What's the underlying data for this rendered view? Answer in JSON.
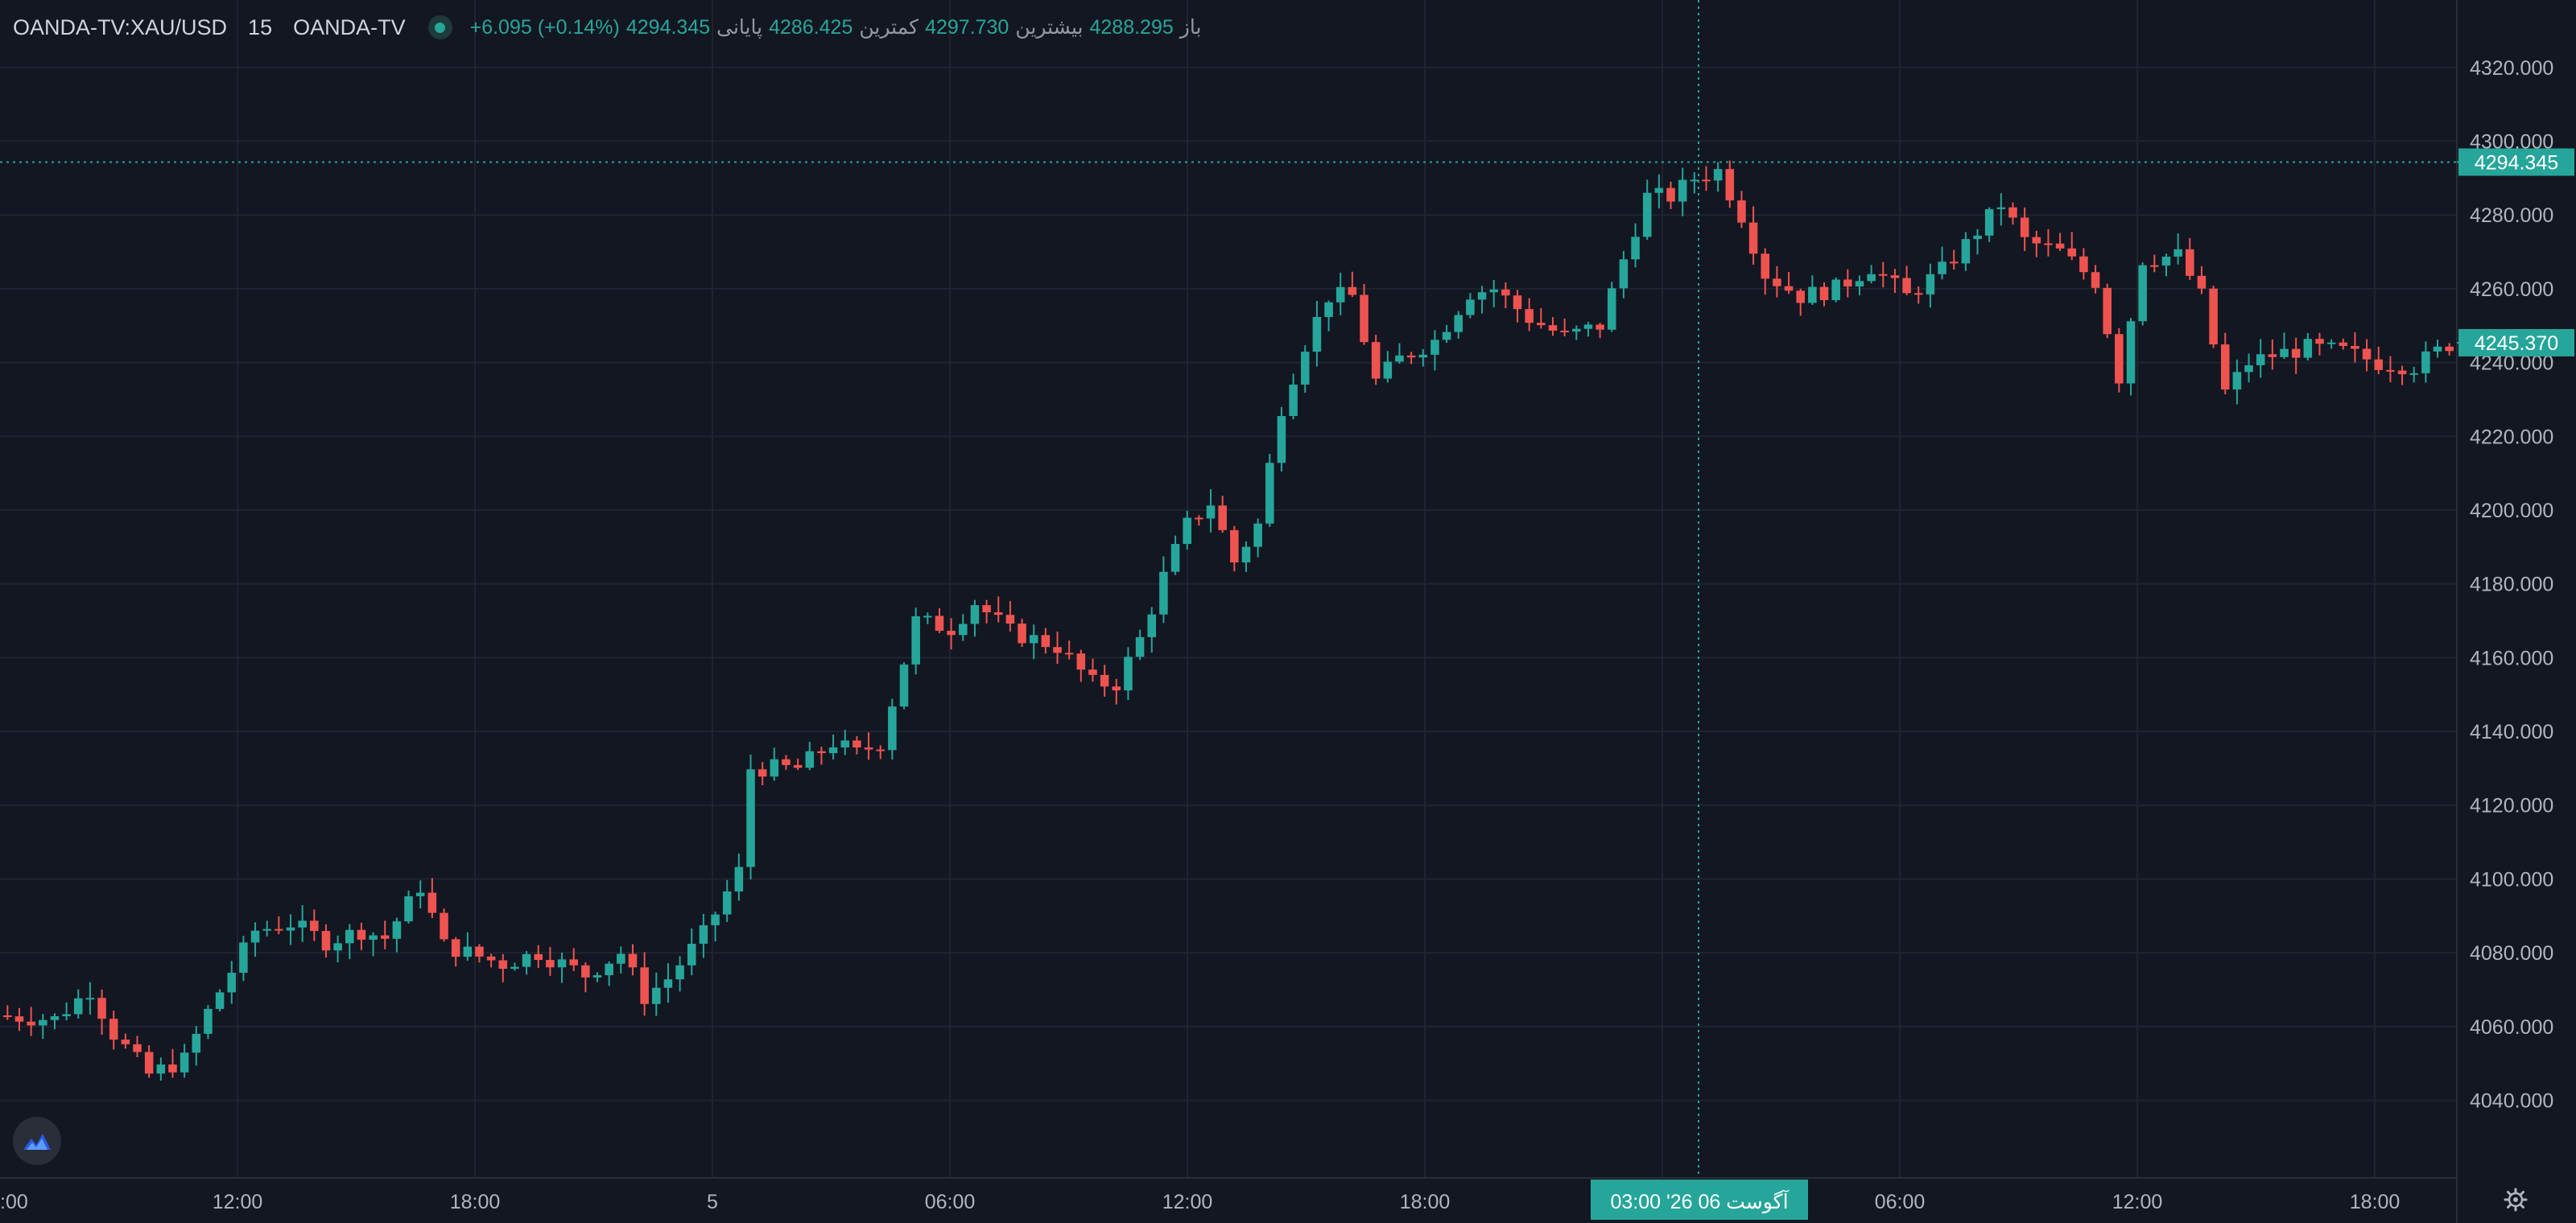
{
  "header": {
    "symbol": "OANDA-TV:XAU/USD",
    "interval": "15",
    "source": "OANDA-TV",
    "ohlc": [
      {
        "label": "باز",
        "value": "4288.295"
      },
      {
        "label": "بیشترین",
        "value": "4297.730"
      },
      {
        "label": "کمترین",
        "value": "4286.425"
      },
      {
        "label": "پایانی",
        "value": "4294.345"
      },
      {
        "label": "",
        "value": "+6.095 (+0.14%)"
      }
    ]
  },
  "colors": {
    "background": "#131722",
    "grid": "#1f2430",
    "text": "#b2b5be",
    "up": "#26a69a",
    "down": "#ef5350",
    "crosshair": "#26a69a"
  },
  "icons": [
    "tradingview-logo-icon",
    "gear-icon"
  ],
  "chart_data": {
    "type": "candlestick",
    "symbol": "OANDA-TV:XAU/USD",
    "interval": "15",
    "ylim": [
      4022,
      4330
    ],
    "y_ticks": [
      4040,
      4060,
      4080,
      4100,
      4120,
      4140,
      4160,
      4180,
      4200,
      4220,
      4240,
      4260,
      4280,
      4300,
      4320
    ],
    "y_tick_labels": [
      "4040.000",
      "4060.000",
      "4080.000",
      "4100.000",
      "4120.000",
      "4140.000",
      "4160.000",
      "4180.000",
      "4200.000",
      "4220.000",
      "4240.000",
      "4260.000",
      "4280.000",
      "4300.000",
      "4320.000"
    ],
    "x_tick_labels": [
      ":00",
      "12:00",
      "18:00",
      "5",
      "06:00",
      "12:00",
      "18:00",
      "6",
      "06:00",
      "12:00",
      "18:00"
    ],
    "crosshair": {
      "price": "4294.345",
      "time_label": "03:00  '26 آگوست 06"
    },
    "last_price": {
      "value": 4245.37,
      "label": "4245.370"
    },
    "hover_price": {
      "value": 4294.345,
      "label": "4294.345"
    },
    "price_path": [
      [
        0,
        4063
      ],
      [
        5,
        4062
      ],
      [
        8,
        4070
      ],
      [
        10,
        4058
      ],
      [
        13,
        4047
      ],
      [
        16,
        4051
      ],
      [
        18,
        4064
      ],
      [
        22,
        4086
      ],
      [
        25,
        4088
      ],
      [
        28,
        4083
      ],
      [
        31,
        4086
      ],
      [
        33,
        4084
      ],
      [
        36,
        4098
      ],
      [
        38,
        4082
      ],
      [
        43,
        4077
      ],
      [
        46,
        4080
      ],
      [
        50,
        4074
      ],
      [
        53,
        4080
      ],
      [
        55,
        4068
      ],
      [
        57,
        4073
      ],
      [
        60,
        4085
      ],
      [
        63,
        4102
      ],
      [
        64,
        4130
      ],
      [
        68,
        4130
      ],
      [
        71,
        4137
      ],
      [
        73,
        4134
      ],
      [
        75,
        4137
      ],
      [
        78,
        4170
      ],
      [
        81,
        4168
      ],
      [
        83,
        4175
      ],
      [
        86,
        4167
      ],
      [
        90,
        4163
      ],
      [
        93,
        4153
      ],
      [
        95,
        4153
      ],
      [
        97,
        4165
      ],
      [
        99,
        4182
      ],
      [
        101,
        4196
      ],
      [
        103,
        4202
      ],
      [
        105,
        4186
      ],
      [
        107,
        4196
      ],
      [
        109,
        4228
      ],
      [
        111,
        4245
      ],
      [
        113,
        4258
      ],
      [
        115,
        4258
      ],
      [
        117,
        4235
      ],
      [
        119,
        4241
      ],
      [
        122,
        4246
      ],
      [
        125,
        4259
      ],
      [
        127,
        4260
      ],
      [
        130,
        4252
      ],
      [
        133,
        4247
      ],
      [
        136,
        4250
      ],
      [
        138,
        4268
      ],
      [
        140,
        4285
      ],
      [
        142,
        4285
      ],
      [
        144,
        4290
      ],
      [
        146,
        4292
      ],
      [
        148,
        4280
      ],
      [
        150,
        4264
      ],
      [
        153,
        4258
      ],
      [
        156,
        4260
      ],
      [
        159,
        4266
      ],
      [
        162,
        4258
      ],
      [
        165,
        4265
      ],
      [
        167,
        4272
      ],
      [
        170,
        4283
      ],
      [
        172,
        4273
      ],
      [
        175,
        4270
      ],
      [
        178,
        4262
      ],
      [
        180,
        4236
      ],
      [
        182,
        4268
      ],
      [
        185,
        4269
      ],
      [
        187,
        4258
      ],
      [
        189,
        4232
      ],
      [
        191,
        4240
      ],
      [
        193,
        4242
      ],
      [
        196,
        4244
      ],
      [
        199,
        4243
      ],
      [
        202,
        4240
      ],
      [
        205,
        4239
      ],
      [
        208,
        4245
      ]
    ]
  }
}
